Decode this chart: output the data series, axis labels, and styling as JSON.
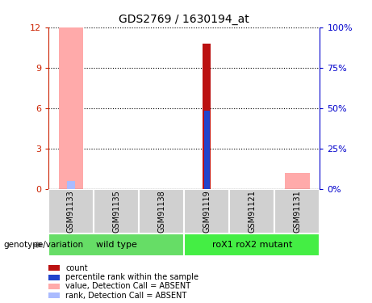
{
  "title": "GDS2769 / 1630194_at",
  "samples": [
    "GSM91133",
    "GSM91135",
    "GSM91138",
    "GSM91119",
    "GSM91121",
    "GSM91131"
  ],
  "groups": [
    {
      "label": "wild type",
      "samples": [
        "GSM91133",
        "GSM91135",
        "GSM91138"
      ],
      "color": "#66dd66"
    },
    {
      "label": "roX1 roX2 mutant",
      "samples": [
        "GSM91119",
        "GSM91121",
        "GSM91131"
      ],
      "color": "#44ee44"
    }
  ],
  "ylim_left": [
    0,
    12
  ],
  "ylim_right": [
    0,
    100
  ],
  "yticks_left": [
    0,
    3,
    6,
    9,
    12
  ],
  "yticks_right": [
    0,
    25,
    50,
    75,
    100
  ],
  "ytick_labels_right": [
    "0%",
    "25%",
    "50%",
    "75%",
    "100%"
  ],
  "bar_data": {
    "GSM91133": {
      "count": null,
      "rank": null,
      "value_absent": 12.0,
      "rank_absent": 0.6
    },
    "GSM91135": {
      "count": null,
      "rank": null,
      "value_absent": null,
      "rank_absent": null
    },
    "GSM91138": {
      "count": null,
      "rank": null,
      "value_absent": null,
      "rank_absent": null
    },
    "GSM91119": {
      "count": 10.8,
      "rank": 5.8,
      "value_absent": null,
      "rank_absent": null
    },
    "GSM91121": {
      "count": null,
      "rank": null,
      "value_absent": null,
      "rank_absent": null
    },
    "GSM91131": {
      "count": null,
      "rank": null,
      "value_absent": 1.2,
      "rank_absent": null
    }
  },
  "bar_width": 0.35,
  "count_color": "#bb1111",
  "rank_color": "#2244cc",
  "value_absent_color": "#ffaaaa",
  "rank_absent_color": "#aabbff",
  "left_axis_color": "#cc2200",
  "right_axis_color": "#0000cc",
  "grid_color": "#000000",
  "genotype_label": "genotype/variation",
  "legend_items": [
    {
      "color": "#bb1111",
      "label": "count"
    },
    {
      "color": "#2244cc",
      "label": "percentile rank within the sample"
    },
    {
      "color": "#ffaaaa",
      "label": "value, Detection Call = ABSENT"
    },
    {
      "color": "#aabbff",
      "label": "rank, Detection Call = ABSENT"
    }
  ]
}
